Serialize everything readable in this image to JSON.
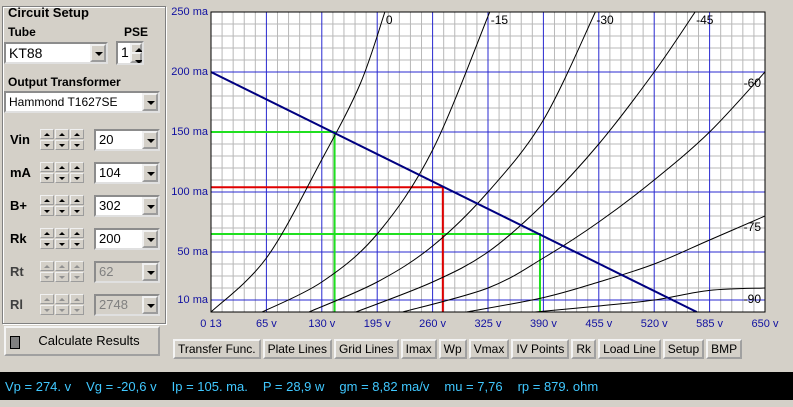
{
  "panel": {
    "title": "Circuit Setup",
    "tube_label": "Tube",
    "pse_label": "PSE",
    "tube": "KT88",
    "pse": 1,
    "transformer_label": "Output Transformer",
    "transformer": "Hammond T1627SE",
    "params": [
      {
        "label": "Vin",
        "value": 20,
        "enabled": true
      },
      {
        "label": "mA",
        "value": 104,
        "enabled": true
      },
      {
        "label": "B+",
        "value": 302,
        "enabled": true
      },
      {
        "label": "Rk",
        "value": 200,
        "enabled": true
      },
      {
        "label": "Rt",
        "value": 62,
        "enabled": false
      },
      {
        "label": "Rl",
        "value": 2748,
        "enabled": false
      }
    ],
    "calculate": "Calculate Results"
  },
  "chart_data": {
    "type": "line",
    "xlim": [
      0,
      650
    ],
    "ylim": [
      0,
      250
    ],
    "xticks": [
      {
        "value": 0,
        "label": "0 13"
      },
      {
        "value": 65,
        "label": "65 v"
      },
      {
        "value": 130,
        "label": "130 v"
      },
      {
        "value": 195,
        "label": "195 v"
      },
      {
        "value": 260,
        "label": "260 v"
      },
      {
        "value": 325,
        "label": "325 v"
      },
      {
        "value": 390,
        "label": "390 v"
      },
      {
        "value": 455,
        "label": "455 v"
      },
      {
        "value": 520,
        "label": "520 v"
      },
      {
        "value": 585,
        "label": "585 v"
      },
      {
        "value": 650,
        "label": "650 v"
      }
    ],
    "yticks": [
      {
        "value": 10,
        "label": "10 ma"
      },
      {
        "value": 50,
        "label": "50 ma"
      },
      {
        "value": 100,
        "label": "100 ma"
      },
      {
        "value": 150,
        "label": "150 ma"
      },
      {
        "value": 200,
        "label": "200 ma"
      },
      {
        "value": 250,
        "label": "250 ma"
      }
    ],
    "grid": true,
    "series": [
      {
        "name": "0",
        "color": "#000000",
        "x": [
          0,
          65,
          130,
          175,
          204
        ],
        "values": [
          0,
          45,
          127,
          190,
          250
        ]
      },
      {
        "name": "-15",
        "color": "#000000",
        "x": [
          60,
          130,
          195,
          260,
          327
        ],
        "values": [
          0,
          25,
          65,
          135,
          250
        ]
      },
      {
        "name": "-30",
        "color": "#000000",
        "x": [
          115,
          195,
          260,
          325,
          390,
          451
        ],
        "values": [
          0,
          25,
          55,
          100,
          160,
          250
        ]
      },
      {
        "name": "-45",
        "color": "#000000",
        "x": [
          170,
          260,
          325,
          390,
          455,
          520,
          568
        ],
        "values": [
          0,
          25,
          50,
          90,
          140,
          200,
          250
        ]
      },
      {
        "name": "-60",
        "color": "#000000",
        "x": [
          225,
          325,
          390,
          455,
          520,
          585,
          650
        ],
        "values": [
          0,
          20,
          45,
          75,
          110,
          150,
          200
        ]
      },
      {
        "name": "-75",
        "color": "#000000",
        "x": [
          300,
          390,
          455,
          520,
          585,
          650
        ],
        "values": [
          0,
          12,
          25,
          40,
          60,
          80
        ]
      },
      {
        "name": "-90",
        "color": "#000000",
        "x": [
          380,
          455,
          520,
          585,
          650
        ],
        "values": [
          0,
          5,
          10,
          18,
          20
        ]
      }
    ],
    "load_line": {
      "color": "#000080",
      "x": [
        0,
        570
      ],
      "values": [
        200,
        0
      ]
    },
    "guides": [
      {
        "color": "#20e020",
        "x": 145,
        "y": 150
      },
      {
        "color": "#e00000",
        "x": 272,
        "y": 104
      },
      {
        "color": "#20e020",
        "x": 386,
        "y": 65
      }
    ]
  },
  "buttons": [
    "Transfer Func.",
    "Plate Lines",
    "Grid Lines",
    "Imax",
    "Wp",
    "Vmax",
    "IV Points",
    "Rk",
    "Load Line",
    "Setup",
    "BMP"
  ],
  "status": [
    "Vp = 274. v",
    "Vg = -20,6 v",
    "Ip = 105. ma.",
    "P = 28,9 w",
    "gm = 8,82 ma/v",
    "mu = 7,76",
    "rp = 879. ohm"
  ]
}
